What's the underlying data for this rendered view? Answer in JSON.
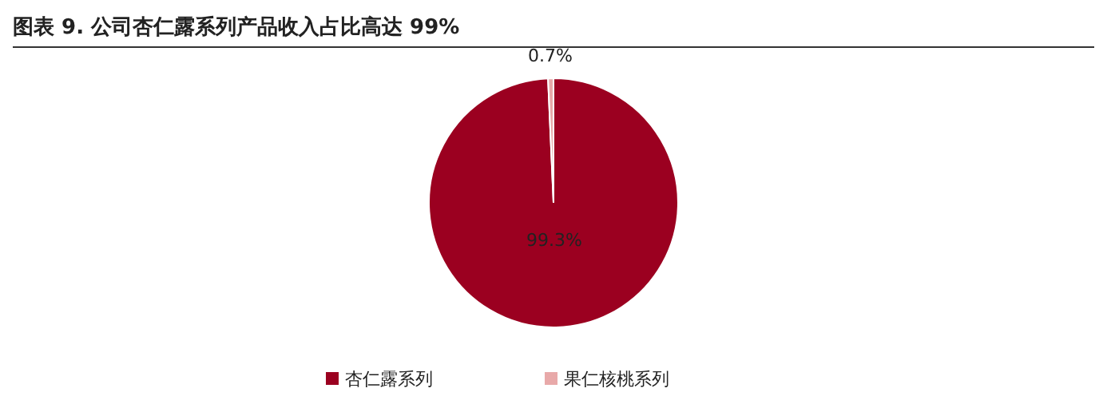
{
  "chart_data": {
    "type": "pie",
    "title": "图表 9. 公司杏仁露系列产品收入占比高达 99%",
    "categories": [
      "杏仁露系列",
      "果仁核桃系列"
    ],
    "values": [
      99.3,
      0.7
    ],
    "colors": [
      "#9b0020",
      "#e8a9a9"
    ],
    "value_labels": [
      "99.3%",
      "0.7%"
    ],
    "legend": "bottom"
  }
}
